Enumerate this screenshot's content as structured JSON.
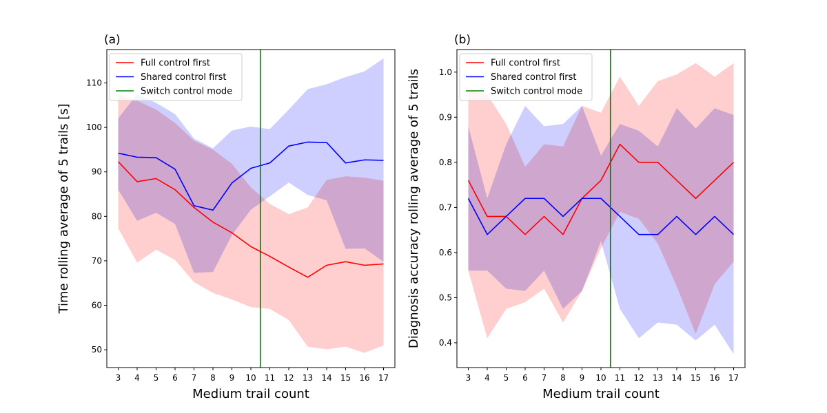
{
  "chart_data": [
    {
      "type": "line",
      "panel_label": "(a)",
      "xlabel": "Medium trail count",
      "ylabel": "Time rolling average of 5 trails [s]",
      "x": [
        3,
        4,
        5,
        6,
        7,
        8,
        9,
        10,
        11,
        12,
        13,
        14,
        15,
        16,
        17
      ],
      "xlim": [
        2.4,
        17.6
      ],
      "ylim": [
        46,
        117.5
      ],
      "yticks": [
        50,
        60,
        70,
        80,
        90,
        100,
        110
      ],
      "switch_x": 10.5,
      "legend": {
        "placement": "top-left",
        "entries": [
          "Full control first",
          "Shared control first",
          "Switch control mode"
        ]
      },
      "series": [
        {
          "name": "Full control first",
          "color": "#ff0000",
          "band_color": "#ffc6c6",
          "values": [
            92.3,
            87.8,
            88.5,
            86,
            82,
            78.7,
            76.3,
            73.2,
            71,
            68.6,
            66.3,
            69,
            69.8,
            69,
            69.3
          ],
          "upper": [
            107.5,
            106,
            104,
            101,
            97,
            95,
            91.8,
            86.5,
            82.8,
            80.5,
            82,
            88.2,
            89,
            88.7,
            88
          ],
          "lower": [
            77.3,
            69.6,
            72.5,
            70.2,
            65.2,
            62.8,
            61.3,
            59.6,
            59.2,
            56.7,
            50.7,
            50.1,
            50.7,
            49.3,
            51
          ]
        },
        {
          "name": "Shared control first",
          "color": "#0000ff",
          "band_color": "#c6c6ff",
          "values": [
            94.2,
            93.3,
            93.2,
            90.6,
            82.4,
            81.4,
            87.5,
            90.8,
            92,
            95.8,
            96.7,
            96.6,
            92,
            92.7,
            92.6
          ],
          "upper": [
            102,
            107.5,
            105.5,
            103,
            97.5,
            95.3,
            99.3,
            100.2,
            99.6,
            104,
            108.6,
            109.7,
            111.3,
            112.6,
            115.5
          ],
          "lower": [
            86,
            79,
            80.8,
            78.3,
            67.3,
            67.5,
            75.8,
            81.5,
            84.5,
            87.6,
            84.8,
            83.6,
            72.7,
            72.8,
            69.8
          ]
        }
      ]
    },
    {
      "type": "line",
      "panel_label": "(b)",
      "xlabel": "Medium trail count",
      "ylabel": "Diagnosis accuracy rolling average of 5 trails",
      "x": [
        3,
        4,
        5,
        6,
        7,
        8,
        9,
        10,
        11,
        12,
        13,
        14,
        15,
        16,
        17
      ],
      "xlim": [
        2.4,
        17.6
      ],
      "ylim": [
        0.345,
        1.05
      ],
      "yticks": [
        0.4,
        0.5,
        0.6,
        0.7,
        0.8,
        0.9,
        1.0
      ],
      "ytick_labels": [
        "0.4",
        "0.5",
        "0.6",
        "0.7",
        "0.8",
        "0.9",
        "1.0"
      ],
      "switch_x": 10.5,
      "legend": {
        "placement": "top-left",
        "entries": [
          "Full control first",
          "Shared control first",
          "Switch control mode"
        ]
      },
      "series": [
        {
          "name": "Full control first",
          "color": "#ff0000",
          "band_color": "#ffc6c6",
          "values": [
            0.76,
            0.68,
            0.68,
            0.64,
            0.68,
            0.64,
            0.72,
            0.76,
            0.84,
            0.8,
            0.8,
            0.76,
            0.72,
            0.76,
            0.8
          ],
          "upper": [
            0.96,
            0.95,
            0.885,
            0.79,
            0.84,
            0.835,
            0.925,
            0.91,
            0.99,
            0.925,
            0.98,
            0.995,
            1.02,
            0.99,
            1.02
          ],
          "lower": [
            0.56,
            0.41,
            0.475,
            0.49,
            0.52,
            0.445,
            0.515,
            0.61,
            0.69,
            0.675,
            0.62,
            0.525,
            0.42,
            0.53,
            0.58
          ]
        },
        {
          "name": "Shared control first",
          "color": "#0000ff",
          "band_color": "#c6c6ff",
          "values": [
            0.72,
            0.64,
            0.68,
            0.72,
            0.72,
            0.68,
            0.72,
            0.72,
            0.68,
            0.64,
            0.64,
            0.68,
            0.64,
            0.68,
            0.64
          ],
          "upper": [
            0.88,
            0.72,
            0.84,
            0.925,
            0.88,
            0.885,
            0.925,
            0.815,
            0.885,
            0.87,
            0.835,
            0.92,
            0.875,
            0.92,
            0.905
          ],
          "lower": [
            0.56,
            0.56,
            0.52,
            0.515,
            0.56,
            0.475,
            0.515,
            0.625,
            0.475,
            0.41,
            0.445,
            0.44,
            0.405,
            0.44,
            0.375
          ]
        }
      ]
    }
  ]
}
